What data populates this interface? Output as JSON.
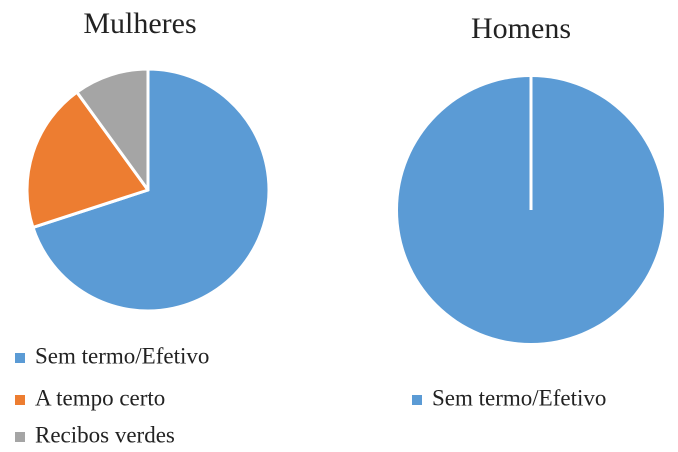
{
  "chart_data": [
    {
      "type": "pie",
      "title": "Mulheres",
      "categories": [
        "Sem termo/Efetivo",
        "A tempo certo",
        "Recibos verdes"
      ],
      "values": [
        70,
        20,
        10
      ],
      "colors": [
        "#5b9bd5",
        "#ed7d31",
        "#a5a5a5"
      ]
    },
    {
      "type": "pie",
      "title": "Homens",
      "categories": [
        "Sem termo/Efetivo"
      ],
      "values": [
        100
      ],
      "colors": [
        "#5b9bd5"
      ]
    }
  ]
}
